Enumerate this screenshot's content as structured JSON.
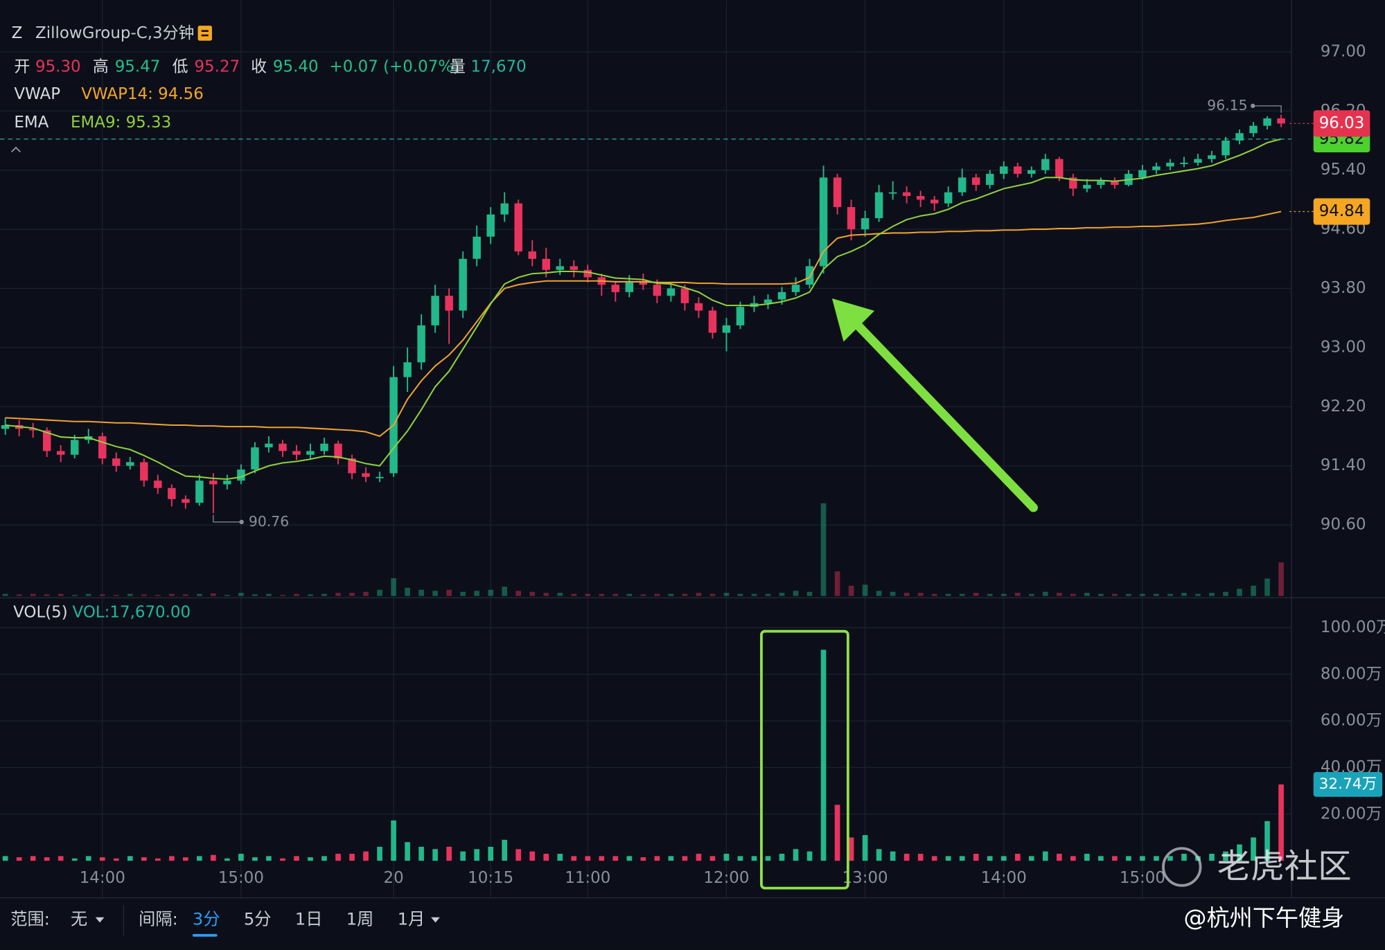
{
  "header": {
    "symbol": "Z",
    "name": "ZillowGroup-C,3分钟",
    "stats": [
      {
        "label": "开",
        "value": "95.30"
      },
      {
        "label": "高",
        "value": "95.47"
      },
      {
        "label": "低",
        "value": "95.27"
      },
      {
        "label": "收",
        "value": "95.40"
      }
    ],
    "change": "+0.07 (+0.07%)",
    "volume_label": "量",
    "volume": "17,670",
    "indicators": [
      {
        "name": "VWAP",
        "value": "VWAP14: 94.56"
      },
      {
        "name": "EMA",
        "value": "EMA9: 95.33"
      }
    ]
  },
  "chart_data": {
    "type": "candlestick",
    "categories": [
      null,
      null,
      null,
      null,
      null,
      null,
      null,
      "14:00",
      null,
      null,
      null,
      null,
      null,
      null,
      null,
      null,
      null,
      "15:00",
      null,
      null,
      null,
      null,
      null,
      null,
      null,
      null,
      null,
      null,
      "20",
      null,
      null,
      null,
      null,
      null,
      null,
      "10:15",
      null,
      null,
      null,
      null,
      null,
      null,
      "11:00",
      null,
      null,
      null,
      null,
      null,
      null,
      null,
      null,
      null,
      "12:00",
      null,
      null,
      null,
      null,
      null,
      null,
      null,
      null,
      null,
      "13:00",
      null,
      null,
      null,
      null,
      null,
      null,
      null,
      null,
      null,
      "14:00",
      null,
      null,
      null,
      null,
      null,
      null,
      null,
      null,
      null,
      "15:00",
      null,
      null,
      null,
      null,
      null,
      null,
      null,
      null,
      null,
      null
    ],
    "ohlc": [
      [
        91.9,
        92.05,
        91.82,
        91.95
      ],
      [
        91.95,
        92.02,
        91.8,
        91.9
      ],
      [
        91.9,
        91.98,
        91.78,
        91.88
      ],
      [
        91.88,
        91.92,
        91.52,
        91.6
      ],
      [
        91.6,
        91.68,
        91.45,
        91.55
      ],
      [
        91.55,
        91.82,
        91.5,
        91.75
      ],
      [
        91.75,
        91.9,
        91.7,
        91.8
      ],
      [
        91.8,
        91.85,
        91.42,
        91.5
      ],
      [
        91.5,
        91.58,
        91.32,
        91.4
      ],
      [
        91.4,
        91.52,
        91.35,
        91.45
      ],
      [
        91.45,
        91.5,
        91.12,
        91.2
      ],
      [
        91.2,
        91.28,
        91.02,
        91.1
      ],
      [
        91.1,
        91.15,
        90.85,
        90.95
      ],
      [
        90.95,
        91.0,
        90.82,
        90.9
      ],
      [
        90.9,
        91.28,
        90.86,
        91.2
      ],
      [
        91.2,
        91.3,
        90.76,
        91.15
      ],
      [
        91.15,
        91.28,
        91.08,
        91.2
      ],
      [
        91.2,
        91.42,
        91.15,
        91.35
      ],
      [
        91.35,
        91.72,
        91.3,
        91.65
      ],
      [
        91.65,
        91.8,
        91.58,
        91.7
      ],
      [
        91.7,
        91.75,
        91.52,
        91.6
      ],
      [
        91.6,
        91.68,
        91.48,
        91.55
      ],
      [
        91.55,
        91.7,
        91.5,
        91.6
      ],
      [
        91.6,
        91.78,
        91.55,
        91.7
      ],
      [
        91.7,
        91.74,
        91.42,
        91.5
      ],
      [
        91.5,
        91.55,
        91.22,
        91.3
      ],
      [
        91.3,
        91.38,
        91.18,
        91.25
      ],
      [
        91.25,
        91.32,
        91.18,
        91.25
      ],
      [
        91.3,
        92.75,
        91.25,
        92.6
      ],
      [
        92.6,
        93.0,
        92.4,
        92.8
      ],
      [
        92.8,
        93.45,
        92.7,
        93.3
      ],
      [
        93.3,
        93.85,
        93.2,
        93.7
      ],
      [
        93.7,
        93.8,
        93.05,
        93.5
      ],
      [
        93.5,
        94.3,
        93.4,
        94.2
      ],
      [
        94.2,
        94.65,
        94.1,
        94.5
      ],
      [
        94.5,
        94.9,
        94.4,
        94.8
      ],
      [
        94.8,
        95.1,
        94.7,
        94.95
      ],
      [
        94.95,
        95.0,
        94.25,
        94.3
      ],
      [
        94.3,
        94.45,
        94.1,
        94.2
      ],
      [
        94.2,
        94.35,
        93.95,
        94.05
      ],
      [
        94.05,
        94.2,
        93.98,
        94.1
      ],
      [
        94.1,
        94.18,
        93.95,
        94.05
      ],
      [
        94.05,
        94.12,
        93.88,
        93.95
      ],
      [
        93.95,
        94.0,
        93.7,
        93.85
      ],
      [
        93.85,
        93.9,
        93.62,
        93.75
      ],
      [
        93.75,
        93.98,
        93.68,
        93.9
      ],
      [
        93.9,
        94.0,
        93.78,
        93.85
      ],
      [
        93.85,
        93.92,
        93.6,
        93.7
      ],
      [
        93.7,
        93.88,
        93.62,
        93.8
      ],
      [
        93.8,
        93.85,
        93.5,
        93.6
      ],
      [
        93.6,
        93.68,
        93.4,
        93.5
      ],
      [
        93.5,
        93.55,
        93.12,
        93.2
      ],
      [
        93.2,
        93.4,
        92.95,
        93.3
      ],
      [
        93.3,
        93.62,
        93.25,
        93.55
      ],
      [
        93.55,
        93.7,
        93.48,
        93.6
      ],
      [
        93.6,
        93.72,
        93.52,
        93.65
      ],
      [
        93.65,
        93.82,
        93.58,
        93.75
      ],
      [
        93.75,
        93.95,
        93.7,
        93.85
      ],
      [
        93.85,
        94.2,
        93.8,
        94.1
      ],
      [
        94.1,
        95.46,
        94.0,
        95.3
      ],
      [
        95.3,
        95.35,
        94.8,
        94.9
      ],
      [
        94.9,
        95.0,
        94.45,
        94.6
      ],
      [
        94.6,
        94.85,
        94.5,
        94.75
      ],
      [
        94.75,
        95.2,
        94.7,
        95.1
      ],
      [
        95.1,
        95.25,
        95.0,
        95.1
      ],
      [
        95.1,
        95.18,
        94.95,
        95.05
      ],
      [
        95.05,
        95.12,
        94.9,
        95.0
      ],
      [
        95.0,
        95.05,
        94.85,
        94.95
      ],
      [
        94.95,
        95.18,
        94.9,
        95.1
      ],
      [
        95.1,
        95.42,
        95.05,
        95.3
      ],
      [
        95.3,
        95.35,
        95.12,
        95.2
      ],
      [
        95.2,
        95.4,
        95.15,
        95.35
      ],
      [
        95.35,
        95.52,
        95.28,
        95.45
      ],
      [
        95.45,
        95.5,
        95.3,
        95.35
      ],
      [
        95.35,
        95.45,
        95.3,
        95.4
      ],
      [
        95.4,
        95.62,
        95.35,
        95.55
      ],
      [
        95.55,
        95.58,
        95.25,
        95.3
      ],
      [
        95.3,
        95.35,
        95.05,
        95.15
      ],
      [
        95.15,
        95.28,
        95.1,
        95.2
      ],
      [
        95.2,
        95.3,
        95.15,
        95.25
      ],
      [
        95.25,
        95.3,
        95.15,
        95.2
      ],
      [
        95.2,
        95.4,
        95.18,
        95.35
      ],
      [
        95.3,
        95.47,
        95.27,
        95.4
      ],
      [
        95.4,
        95.5,
        95.35,
        95.45
      ],
      [
        95.45,
        95.55,
        95.4,
        95.5
      ],
      [
        95.5,
        95.58,
        95.44,
        95.5
      ],
      [
        95.5,
        95.62,
        95.46,
        95.55
      ],
      [
        95.55,
        95.66,
        95.5,
        95.6
      ],
      [
        95.6,
        95.85,
        95.55,
        95.8
      ],
      [
        95.8,
        95.95,
        95.75,
        95.9
      ],
      [
        95.9,
        96.05,
        95.85,
        96.0
      ],
      [
        96.0,
        96.13,
        95.95,
        96.1
      ],
      [
        96.1,
        96.15,
        95.98,
        96.03
      ]
    ],
    "ema": [
      91.95,
      91.93,
      91.91,
      91.85,
      91.79,
      91.78,
      91.78,
      91.72,
      91.66,
      91.62,
      91.54,
      91.45,
      91.35,
      91.26,
      91.25,
      91.23,
      91.22,
      91.25,
      91.33,
      91.4,
      91.44,
      91.46,
      91.49,
      91.53,
      91.52,
      91.48,
      91.43,
      91.4,
      91.64,
      91.87,
      92.16,
      92.47,
      92.68,
      92.98,
      93.28,
      93.59,
      93.86,
      93.95,
      94.0,
      94.01,
      94.03,
      94.03,
      94.02,
      93.98,
      93.94,
      93.93,
      93.92,
      93.87,
      93.86,
      93.81,
      93.75,
      93.64,
      93.57,
      93.57,
      93.57,
      93.59,
      93.62,
      93.67,
      93.75,
      94.06,
      94.23,
      94.3,
      94.39,
      94.53,
      94.64,
      94.73,
      94.78,
      94.81,
      94.87,
      94.96,
      95.01,
      95.08,
      95.15,
      95.19,
      95.23,
      95.3,
      95.3,
      95.27,
      95.26,
      95.26,
      95.25,
      95.27,
      95.29,
      95.33,
      95.36,
      95.39,
      95.42,
      95.46,
      95.53,
      95.6,
      95.68,
      95.77,
      95.82
    ],
    "vwap": [
      92.05,
      92.04,
      92.03,
      92.02,
      92.01,
      92.0,
      92.0,
      91.99,
      91.98,
      91.98,
      91.97,
      91.96,
      91.95,
      91.95,
      91.94,
      91.94,
      91.93,
      91.93,
      91.93,
      91.92,
      91.92,
      91.92,
      91.91,
      91.9,
      91.89,
      91.88,
      91.86,
      91.8,
      91.95,
      92.3,
      92.55,
      92.75,
      92.9,
      93.1,
      93.35,
      93.6,
      93.8,
      93.85,
      93.88,
      93.9,
      93.9,
      93.9,
      93.9,
      93.9,
      93.89,
      93.89,
      93.89,
      93.88,
      93.88,
      93.88,
      93.87,
      93.87,
      93.86,
      93.86,
      93.86,
      93.86,
      93.86,
      93.87,
      93.95,
      94.3,
      94.48,
      94.52,
      94.53,
      94.54,
      94.55,
      94.55,
      94.56,
      94.56,
      94.57,
      94.57,
      94.58,
      94.58,
      94.59,
      94.59,
      94.6,
      94.6,
      94.61,
      94.61,
      94.62,
      94.62,
      94.63,
      94.63,
      94.64,
      94.64,
      94.65,
      94.66,
      94.67,
      94.69,
      94.72,
      94.74,
      94.76,
      94.8,
      94.84
    ],
    "up_color": "#22b88a",
    "down_color": "#e8335e",
    "ema_color": "#8fd13f",
    "vwap_color": "#f0a030",
    "last_color": "#e5334f",
    "ema_badge_color": "#4cd12f",
    "vwap_badge_color": "#f5a623",
    "ylim": [
      89.64,
      97.7
    ],
    "yticks": [
      {
        "value": 97,
        "label": "97.00"
      },
      {
        "value": 96.2,
        "label": "96.20"
      },
      {
        "value": 95.4,
        "label": "95.40"
      },
      {
        "value": 94.6,
        "label": "94.60"
      },
      {
        "value": 93.8,
        "label": "93.80"
      },
      {
        "value": 93,
        "label": "93.00"
      },
      {
        "value": 92.2,
        "label": "92.20"
      },
      {
        "value": 91.4,
        "label": "91.40"
      },
      {
        "value": 90.6,
        "label": "90.60"
      }
    ],
    "grid": true
  },
  "volume_chart": {
    "type": "bar",
    "title": "VOL(5)",
    "label": "VOL:17,670.00",
    "values": [
      2,
      1.5,
      2,
      1.5,
      2,
      1,
      2,
      1.5,
      1,
      2,
      1.5,
      1,
      2,
      1.5,
      2,
      2.5,
      1,
      3,
      1.5,
      2,
      1,
      2,
      1.5,
      2,
      3,
      3,
      4,
      6,
      17.3,
      8,
      6,
      5,
      6,
      4,
      5,
      6,
      9,
      5,
      4,
      3,
      3,
      2,
      2,
      2,
      2,
      2,
      1.5,
      2,
      2,
      2,
      3,
      2,
      3,
      2,
      2,
      2,
      3,
      5,
      4,
      90.5,
      24,
      10,
      11,
      5,
      4,
      3,
      3,
      2,
      2,
      2,
      3,
      2,
      2,
      3,
      2,
      4,
      3,
      2,
      3,
      2,
      2,
      2,
      2,
      2,
      2,
      3,
      2,
      3,
      4,
      7,
      10,
      17,
      32.74
    ],
    "value_labels": [
      null,
      null,
      null,
      null,
      null,
      null,
      null,
      null,
      null,
      null,
      null,
      null,
      null,
      null,
      null,
      null,
      null,
      null,
      null,
      null,
      null,
      null,
      null,
      null,
      null,
      null,
      null,
      null,
      null,
      null,
      null,
      null,
      null,
      null,
      null,
      null,
      null,
      null,
      null,
      null,
      null,
      null,
      null,
      null,
      null,
      null,
      null,
      null,
      null,
      null,
      null,
      null,
      null,
      null,
      null,
      null,
      null,
      null,
      null,
      null,
      null,
      null,
      null,
      null,
      null,
      null,
      null,
      null,
      null,
      null,
      null,
      null,
      null,
      null,
      null,
      null,
      null,
      null,
      null,
      null,
      null,
      null,
      null,
      null,
      null,
      null,
      null,
      null,
      null,
      null,
      null,
      null,
      "32.74万"
    ],
    "badge_color": "#1aa3b8",
    "ylim": [
      0,
      111.7
    ],
    "yticks": [
      {
        "value": 20,
        "label": "20.00万"
      },
      {
        "value": 40,
        "label": "40.00万"
      },
      {
        "value": 60,
        "label": "60.00万"
      },
      {
        "value": 80,
        "label": "80.00万"
      },
      {
        "value": 100,
        "label": "100.00万"
      }
    ]
  },
  "toolbar": {
    "range_label": "范围:",
    "range_value": "无",
    "interval_label": "间隔:",
    "intervals": [
      "3分",
      "5分",
      "1日",
      "1周",
      "1月"
    ]
  },
  "watermark": {
    "brand": "老虎社区",
    "author": "@杭州下午健身"
  }
}
